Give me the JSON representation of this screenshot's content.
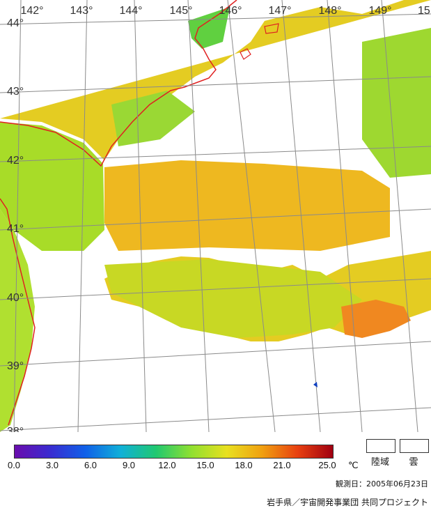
{
  "map": {
    "longitude_labels": [
      "142°",
      "143°",
      "144°",
      "145°",
      "146°",
      "147°",
      "148°",
      "149°",
      "15"
    ],
    "latitude_labels": [
      "44°",
      "43°",
      "42°",
      "41°",
      "40°",
      "39°",
      "38°"
    ]
  },
  "legend": {
    "ticks": [
      "0.0",
      "3.0",
      "6.0",
      "9.0",
      "12.0",
      "15.0",
      "18.0",
      "21.0",
      "25.0"
    ],
    "unit": "℃",
    "land_label": "陸域",
    "cloud_label": "雲",
    "colors": [
      "#6a0dad",
      "#3a2bd0",
      "#1060e8",
      "#10b0d8",
      "#20c870",
      "#90e030",
      "#e8e020",
      "#f0a010",
      "#e84010",
      "#a00010"
    ]
  },
  "observation_date": "観測日：2005年06月23日",
  "credit": "岩手県／宇宙開発事業団 共同プロジェクト"
}
